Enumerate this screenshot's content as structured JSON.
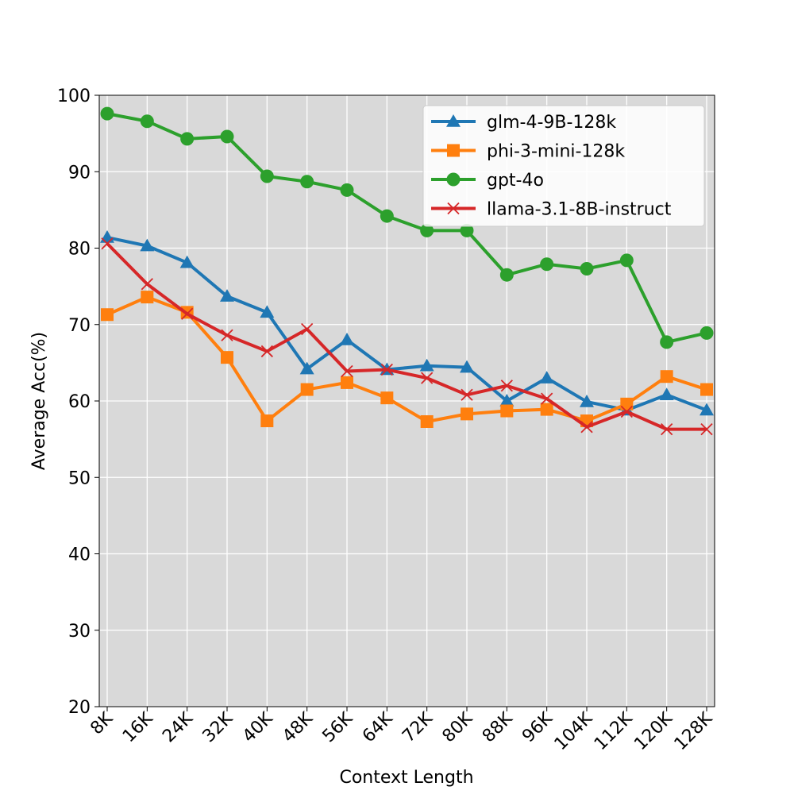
{
  "chart_data": {
    "type": "line",
    "xlabel": "Context Length",
    "ylabel": "Average Acc(%)",
    "ylim": [
      20,
      100
    ],
    "yticks": [
      20,
      30,
      40,
      50,
      60,
      70,
      80,
      90,
      100
    ],
    "grid": true,
    "legend_position": "top-right",
    "categories": [
      "8K",
      "16K",
      "24K",
      "32K",
      "40K",
      "48K",
      "56K",
      "64K",
      "72K",
      "80K",
      "88K",
      "96K",
      "104K",
      "112K",
      "120K",
      "128K"
    ],
    "series": [
      {
        "name": "glm-4-9B-128k",
        "color": "#1f77b4",
        "marker": "triangle",
        "values": [
          81.4,
          80.3,
          78.1,
          73.7,
          71.6,
          64.2,
          68.0,
          64.1,
          64.6,
          64.4,
          60.0,
          63.0,
          59.9,
          58.8,
          60.8,
          58.8
        ]
      },
      {
        "name": "phi-3-mini-128k",
        "color": "#ff7f0e",
        "marker": "square",
        "values": [
          71.3,
          73.6,
          71.6,
          65.7,
          57.4,
          61.5,
          62.4,
          60.4,
          57.3,
          58.3,
          58.7,
          58.9,
          57.4,
          59.6,
          63.2,
          61.5
        ]
      },
      {
        "name": "gpt-4o",
        "color": "#2ca02c",
        "marker": "circle",
        "values": [
          97.6,
          96.6,
          94.3,
          94.6,
          89.4,
          88.7,
          87.6,
          84.2,
          82.3,
          82.3,
          76.5,
          77.9,
          77.3,
          78.4,
          67.7,
          68.9
        ]
      },
      {
        "name": "llama-3.1-8B-instruct",
        "color": "#d62728",
        "marker": "x",
        "values": [
          80.6,
          75.3,
          71.4,
          68.6,
          66.5,
          69.4,
          63.9,
          64.1,
          63.0,
          60.8,
          62.0,
          60.3,
          56.6,
          58.6,
          56.3,
          56.3
        ]
      }
    ]
  }
}
